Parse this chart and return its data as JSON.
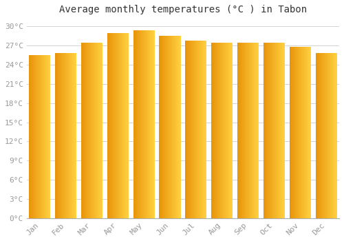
{
  "title": "Average monthly temperatures (°C ) in Tabon",
  "months": [
    "Jan",
    "Feb",
    "Mar",
    "Apr",
    "May",
    "Jun",
    "Jul",
    "Aug",
    "Sep",
    "Oct",
    "Nov",
    "Dec"
  ],
  "values": [
    25.5,
    25.8,
    27.5,
    29.0,
    29.4,
    28.5,
    27.8,
    27.5,
    27.5,
    27.5,
    26.8,
    25.8
  ],
  "bar_color_left": "#E8940A",
  "bar_color_right": "#FFD040",
  "background_color": "#FFFFFF",
  "grid_color": "#CCCCCC",
  "ylim": [
    0,
    31
  ],
  "yticks": [
    0,
    3,
    6,
    9,
    12,
    15,
    18,
    21,
    24,
    27,
    30
  ],
  "ytick_labels": [
    "0°C",
    "3°C",
    "6°C",
    "9°C",
    "12°C",
    "15°C",
    "18°C",
    "21°C",
    "24°C",
    "27°C",
    "30°C"
  ],
  "title_fontsize": 10,
  "tick_fontsize": 8,
  "title_color": "#333333",
  "tick_color": "#999999",
  "bar_width": 0.82,
  "gradient_steps": 50
}
